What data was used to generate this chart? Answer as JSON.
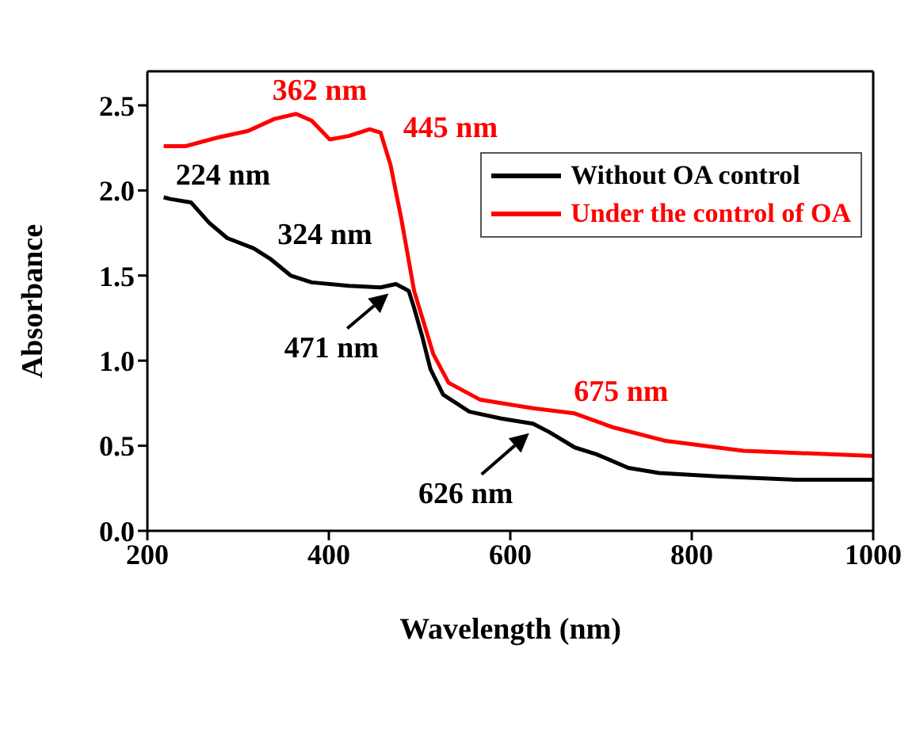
{
  "chart_data": {
    "type": "line",
    "xlabel": "Wavelength (nm)",
    "ylabel": "Absorbance",
    "xlim": [
      200,
      1000
    ],
    "xticks": [
      200,
      400,
      600,
      800,
      1000
    ],
    "ylim": [
      0,
      2.7
    ],
    "yticks": [
      {
        "value": 0,
        "label": "0.0"
      },
      0.5,
      {
        "value": 1,
        "label": "1.0"
      },
      1.5,
      {
        "value": 2,
        "label": "2.0"
      },
      2.5
    ],
    "legend": "top right",
    "marker": "none",
    "line_style": "solid",
    "series": [
      {
        "name": "Without OA control",
        "color": "#000000",
        "x": [
          218,
          225,
          248,
          268,
          288,
          317,
          335,
          358,
          381,
          422,
          457,
          474,
          488,
          494,
          503,
          512,
          526,
          555,
          590,
          625,
          643,
          671,
          695,
          730,
          764,
          828,
          915,
          1000
        ],
        "values": [
          1.96,
          1.95,
          1.93,
          1.81,
          1.72,
          1.66,
          1.6,
          1.5,
          1.46,
          1.44,
          1.43,
          1.45,
          1.41,
          1.31,
          1.14,
          0.95,
          0.8,
          0.7,
          0.66,
          0.63,
          0.58,
          0.49,
          0.45,
          0.37,
          0.34,
          0.32,
          0.3,
          0.3
        ]
      },
      {
        "name": "Under the control of OA",
        "color": "#ff0000",
        "x": [
          218,
          242,
          277,
          311,
          340,
          364,
          381,
          401,
          422,
          445,
          457,
          468,
          480,
          494,
          515,
          532,
          567,
          625,
          671,
          712,
          770,
          857,
          1000
        ],
        "values": [
          2.26,
          2.26,
          2.31,
          2.35,
          2.42,
          2.45,
          2.41,
          2.3,
          2.32,
          2.36,
          2.34,
          2.15,
          1.83,
          1.41,
          1.04,
          0.87,
          0.77,
          0.72,
          0.69,
          0.61,
          0.53,
          0.47,
          0.44
        ]
      }
    ],
    "annotations": [
      {
        "text": "224 nm",
        "x": 224,
        "y": 1.95
      },
      {
        "text": "324 nm",
        "x": 324,
        "y": 1.64
      },
      {
        "text": "471 nm",
        "x": 471,
        "y": 1.45
      },
      {
        "text": "626 nm",
        "x": 626,
        "y": 0.63
      },
      {
        "text": "362 nm",
        "x": 362,
        "y": 2.45
      },
      {
        "text": "445 nm",
        "x": 445,
        "y": 2.36
      },
      {
        "text": "675 nm",
        "x": 675,
        "y": 0.69
      }
    ]
  }
}
